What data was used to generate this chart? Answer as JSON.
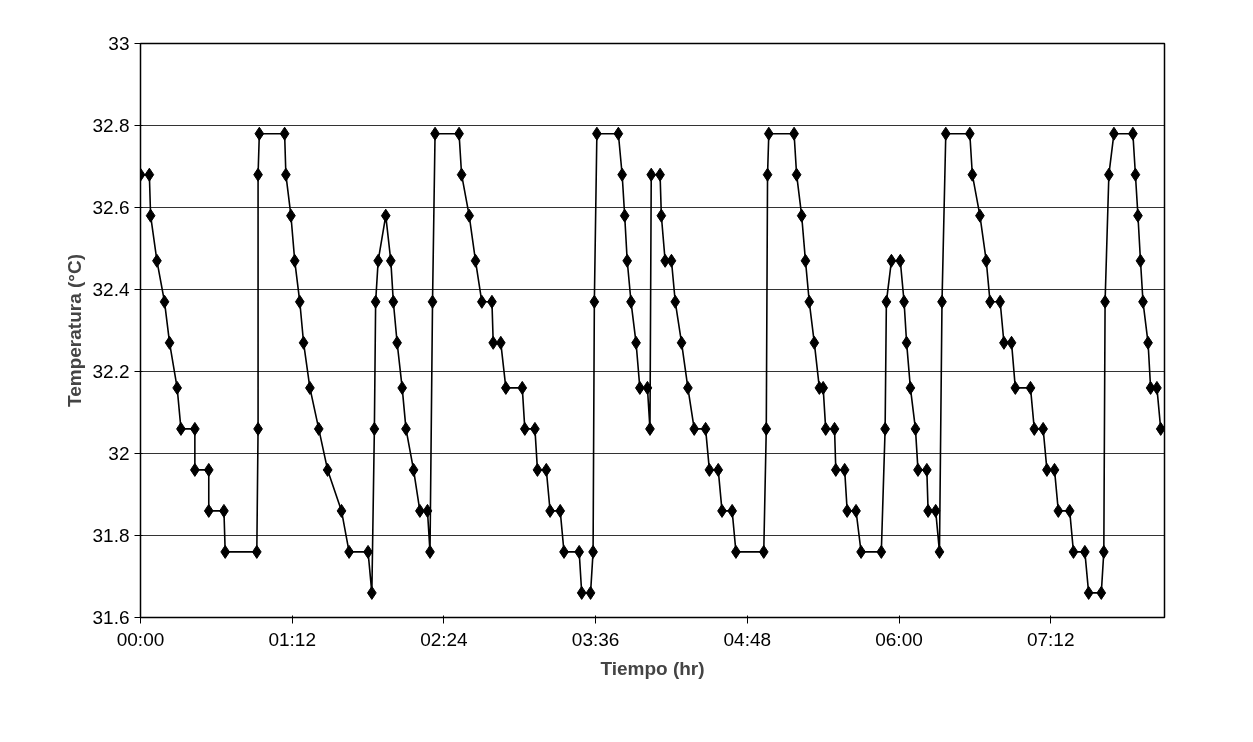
{
  "chart_data": {
    "type": "line",
    "xlabel": "Tiempo (hr)",
    "ylabel": "Temperatura (°C)",
    "xlim": [
      0,
      8.1
    ],
    "xticks": [
      {
        "value": 0,
        "label": "00:00"
      },
      {
        "value": 1.2,
        "label": "01:12"
      },
      {
        "value": 2.4,
        "label": "02:24"
      },
      {
        "value": 3.6,
        "label": "03:36"
      },
      {
        "value": 4.8,
        "label": "04:48"
      },
      {
        "value": 6,
        "label": "06:00"
      },
      {
        "value": 7.2,
        "label": "07:12"
      }
    ],
    "ylim": [
      31.6,
      33
    ],
    "yticks": [
      31.6,
      31.8,
      32,
      32.2,
      32.4,
      32.6,
      32.8,
      33
    ],
    "grid": "y",
    "marker": "diamond",
    "line_style": "solid",
    "series": [
      {
        "color": "#000000",
        "x": [
          0.0,
          0.07,
          0.08,
          0.13,
          0.19,
          0.23,
          0.29,
          0.32,
          0.43,
          0.43,
          0.54,
          0.54,
          0.66,
          0.67,
          0.92,
          0.93,
          0.93,
          0.94,
          1.14,
          1.15,
          1.19,
          1.22,
          1.26,
          1.29,
          1.34,
          1.41,
          1.48,
          1.59,
          1.65,
          1.8,
          1.83,
          1.85,
          1.86,
          1.88,
          1.94,
          1.98,
          2.0,
          2.03,
          2.07,
          2.1,
          2.16,
          2.21,
          2.27,
          2.29,
          2.31,
          2.33,
          2.52,
          2.54,
          2.6,
          2.65,
          2.7,
          2.78,
          2.79,
          2.85,
          2.89,
          3.02,
          3.04,
          3.12,
          3.14,
          3.21,
          3.24,
          3.32,
          3.35,
          3.47,
          3.49,
          3.56,
          3.58,
          3.59,
          3.61,
          3.78,
          3.81,
          3.83,
          3.85,
          3.88,
          3.92,
          3.95,
          4.01,
          4.03,
          4.04,
          4.11,
          4.12,
          4.15,
          4.2,
          4.23,
          4.28,
          4.33,
          4.38,
          4.47,
          4.5,
          4.57,
          4.6,
          4.68,
          4.71,
          4.93,
          4.95,
          4.96,
          4.97,
          5.17,
          5.19,
          5.23,
          5.26,
          5.29,
          5.33,
          5.37,
          5.4,
          5.42,
          5.49,
          5.5,
          5.57,
          5.59,
          5.66,
          5.7,
          5.86,
          5.89,
          5.9,
          5.94,
          6.01,
          6.04,
          6.06,
          6.09,
          6.13,
          6.15,
          6.22,
          6.23,
          6.29,
          6.32,
          6.34,
          6.37,
          6.56,
          6.58,
          6.64,
          6.69,
          6.72,
          6.8,
          6.83,
          6.89,
          6.92,
          7.04,
          7.07,
          7.14,
          7.17,
          7.23,
          7.26,
          7.35,
          7.38,
          7.47,
          7.5,
          7.6,
          7.62,
          7.63,
          7.66,
          7.7,
          7.85,
          7.87,
          7.89,
          7.91,
          7.93,
          7.97,
          7.99,
          8.04,
          8.07
        ],
        "values": [
          32.68,
          32.68,
          32.58,
          32.47,
          32.37,
          32.27,
          32.16,
          32.06,
          32.06,
          31.96,
          31.96,
          31.86,
          31.86,
          31.76,
          31.76,
          32.06,
          32.68,
          32.78,
          32.78,
          32.68,
          32.58,
          32.47,
          32.37,
          32.27,
          32.16,
          32.06,
          31.96,
          31.86,
          31.76,
          31.76,
          31.66,
          32.06,
          32.37,
          32.47,
          32.58,
          32.47,
          32.37,
          32.27,
          32.16,
          32.06,
          31.96,
          31.86,
          31.86,
          31.76,
          32.37,
          32.78,
          32.78,
          32.68,
          32.58,
          32.47,
          32.37,
          32.37,
          32.27,
          32.27,
          32.16,
          32.16,
          32.06,
          32.06,
          31.96,
          31.96,
          31.86,
          31.86,
          31.76,
          31.76,
          31.66,
          31.66,
          31.76,
          32.37,
          32.78,
          32.78,
          32.68,
          32.58,
          32.47,
          32.37,
          32.27,
          32.16,
          32.16,
          32.06,
          32.68,
          32.68,
          32.58,
          32.47,
          32.47,
          32.37,
          32.27,
          32.16,
          32.06,
          32.06,
          31.96,
          31.96,
          31.86,
          31.86,
          31.76,
          31.76,
          32.06,
          32.68,
          32.78,
          32.78,
          32.68,
          32.58,
          32.47,
          32.37,
          32.27,
          32.16,
          32.16,
          32.06,
          32.06,
          31.96,
          31.96,
          31.86,
          31.86,
          31.76,
          31.76,
          32.06,
          32.37,
          32.47,
          32.47,
          32.37,
          32.27,
          32.16,
          32.06,
          31.96,
          31.96,
          31.86,
          31.86,
          31.76,
          32.37,
          32.78,
          32.78,
          32.68,
          32.58,
          32.47,
          32.37,
          32.37,
          32.27,
          32.27,
          32.16,
          32.16,
          32.06,
          32.06,
          31.96,
          31.96,
          31.86,
          31.86,
          31.76,
          31.76,
          31.66,
          31.66,
          31.76,
          32.37,
          32.68,
          32.78,
          32.78,
          32.68,
          32.58,
          32.47,
          32.37,
          32.27,
          32.16,
          32.16,
          32.06
        ]
      }
    ]
  }
}
